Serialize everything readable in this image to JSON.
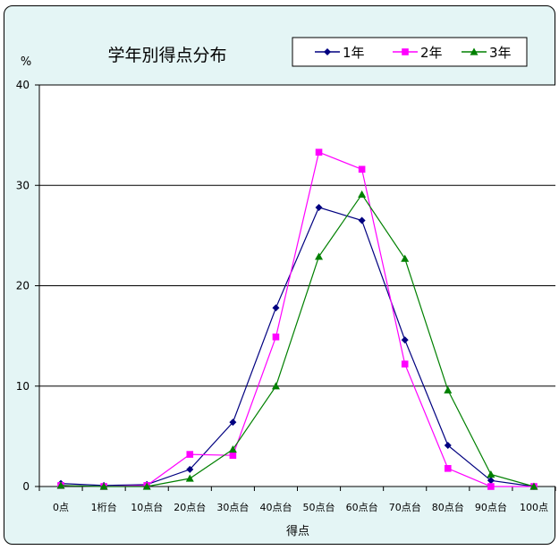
{
  "chart_data": {
    "type": "line",
    "title": "学年別得点分布",
    "ylabel": "%",
    "xlabel": "得点",
    "categories": [
      "0点",
      "1桁台",
      "10点台",
      "20点台",
      "30点台",
      "40点台",
      "50点台",
      "60点台",
      "70点台",
      "80点台",
      "90点台",
      "100点"
    ],
    "ylim": [
      0,
      40
    ],
    "yticks": [
      0,
      10,
      20,
      30,
      40
    ],
    "grid": true,
    "legend_position": "top-right",
    "series": [
      {
        "name": "1年",
        "color": "#000080",
        "marker": "diamond",
        "values": [
          0.3,
          0.1,
          0.2,
          1.7,
          6.4,
          17.8,
          27.8,
          26.5,
          14.6,
          4.1,
          0.6,
          0.0
        ]
      },
      {
        "name": "2年",
        "color": "#ff00ff",
        "marker": "square",
        "values": [
          0.1,
          0.0,
          0.1,
          3.2,
          3.1,
          14.9,
          33.3,
          31.6,
          12.2,
          1.8,
          0.0,
          0.0
        ]
      },
      {
        "name": "3年",
        "color": "#008000",
        "marker": "triangle",
        "values": [
          0.1,
          0.0,
          0.0,
          0.8,
          3.7,
          10.0,
          22.9,
          29.1,
          22.7,
          9.6,
          1.2,
          0.0
        ]
      }
    ]
  }
}
